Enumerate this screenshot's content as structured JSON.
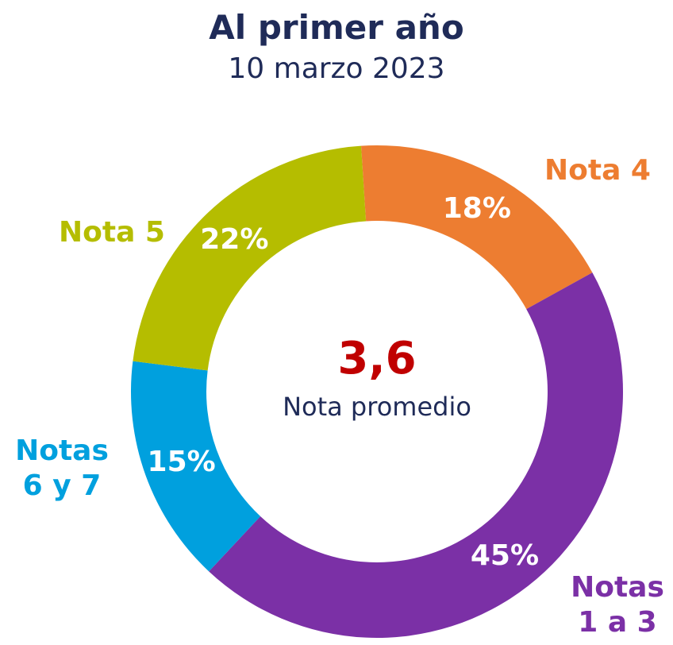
{
  "chart_data": {
    "type": "donut",
    "title": "Al primer año",
    "subtitle": "10 marzo 2023",
    "categories": [
      "Nota 4",
      "Notas 1 a 3",
      "Notas 6 y 7",
      "Nota 5"
    ],
    "values": [
      18,
      45,
      15,
      22
    ],
    "value_labels": [
      "18%",
      "45%",
      "15%",
      "22%"
    ],
    "colors": [
      "#ed7d31",
      "#7b30a6",
      "#00a0de",
      "#b5bd00"
    ],
    "center_value": "3,6",
    "center_caption": "Nota promedio"
  }
}
